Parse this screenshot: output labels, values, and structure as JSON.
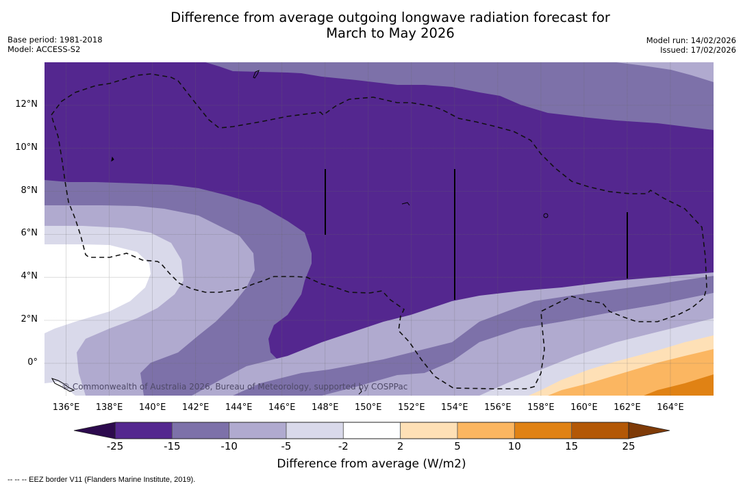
{
  "title_line1": "Difference from average outgoing longwave radiation forecast for",
  "title_line2": "March to May 2026",
  "meta_left": {
    "base_period": "Base period: 1981-2018",
    "model": "Model: ACCESS-S2"
  },
  "meta_right": {
    "model_run": "Model run: 14/02/2026",
    "issued": "Issued: 17/02/2026"
  },
  "map": {
    "lon_range": [
      135.0,
      166.0
    ],
    "lat_range": [
      -1.5,
      14.0
    ],
    "lat_labels": [
      {
        "value": 12,
        "label": "12°N"
      },
      {
        "value": 10,
        "label": "10°N"
      },
      {
        "value": 8,
        "label": "8°N"
      },
      {
        "value": 6,
        "label": "6°N"
      },
      {
        "value": 4,
        "label": "4°N"
      },
      {
        "value": 2,
        "label": "2°N"
      },
      {
        "value": 0,
        "label": "0°"
      }
    ],
    "lon_labels": [
      {
        "value": 136,
        "label": "136°E"
      },
      {
        "value": 138,
        "label": "138°E"
      },
      {
        "value": 140,
        "label": "140°E"
      },
      {
        "value": 142,
        "label": "142°E"
      },
      {
        "value": 144,
        "label": "144°E"
      },
      {
        "value": 146,
        "label": "146°E"
      },
      {
        "value": 148,
        "label": "148°E"
      },
      {
        "value": 150,
        "label": "150°E"
      },
      {
        "value": 152,
        "label": "152°E"
      },
      {
        "value": 154,
        "label": "154°E"
      },
      {
        "value": 156,
        "label": "156°E"
      },
      {
        "value": 158,
        "label": "158°E"
      },
      {
        "value": 160,
        "label": "160°E"
      },
      {
        "value": 162,
        "label": "162°E"
      },
      {
        "value": 164,
        "label": "164°E"
      }
    ],
    "copyright": "© Commonwealth of Australia 2026, Bureau of Meteorology, supported by COSPPac"
  },
  "colorbar": {
    "title": "Difference from average (W/m2)",
    "boundaries": [
      "-25",
      "-15",
      "-10",
      "-5",
      "-2",
      "2",
      "5",
      "10",
      "15",
      "25"
    ],
    "under_color": "#2d0a4e",
    "colors": [
      "#54278f",
      "#7d71a9",
      "#b0aacf",
      "#d9d9ea",
      "#ffffff",
      "#fee0b6",
      "#fbb661",
      "#e08214",
      "#b35806"
    ],
    "over_color": "#7f3b08"
  },
  "footer": "--  --  -- EEZ border V11 (Flanders Marine Institute, 2019)."
}
